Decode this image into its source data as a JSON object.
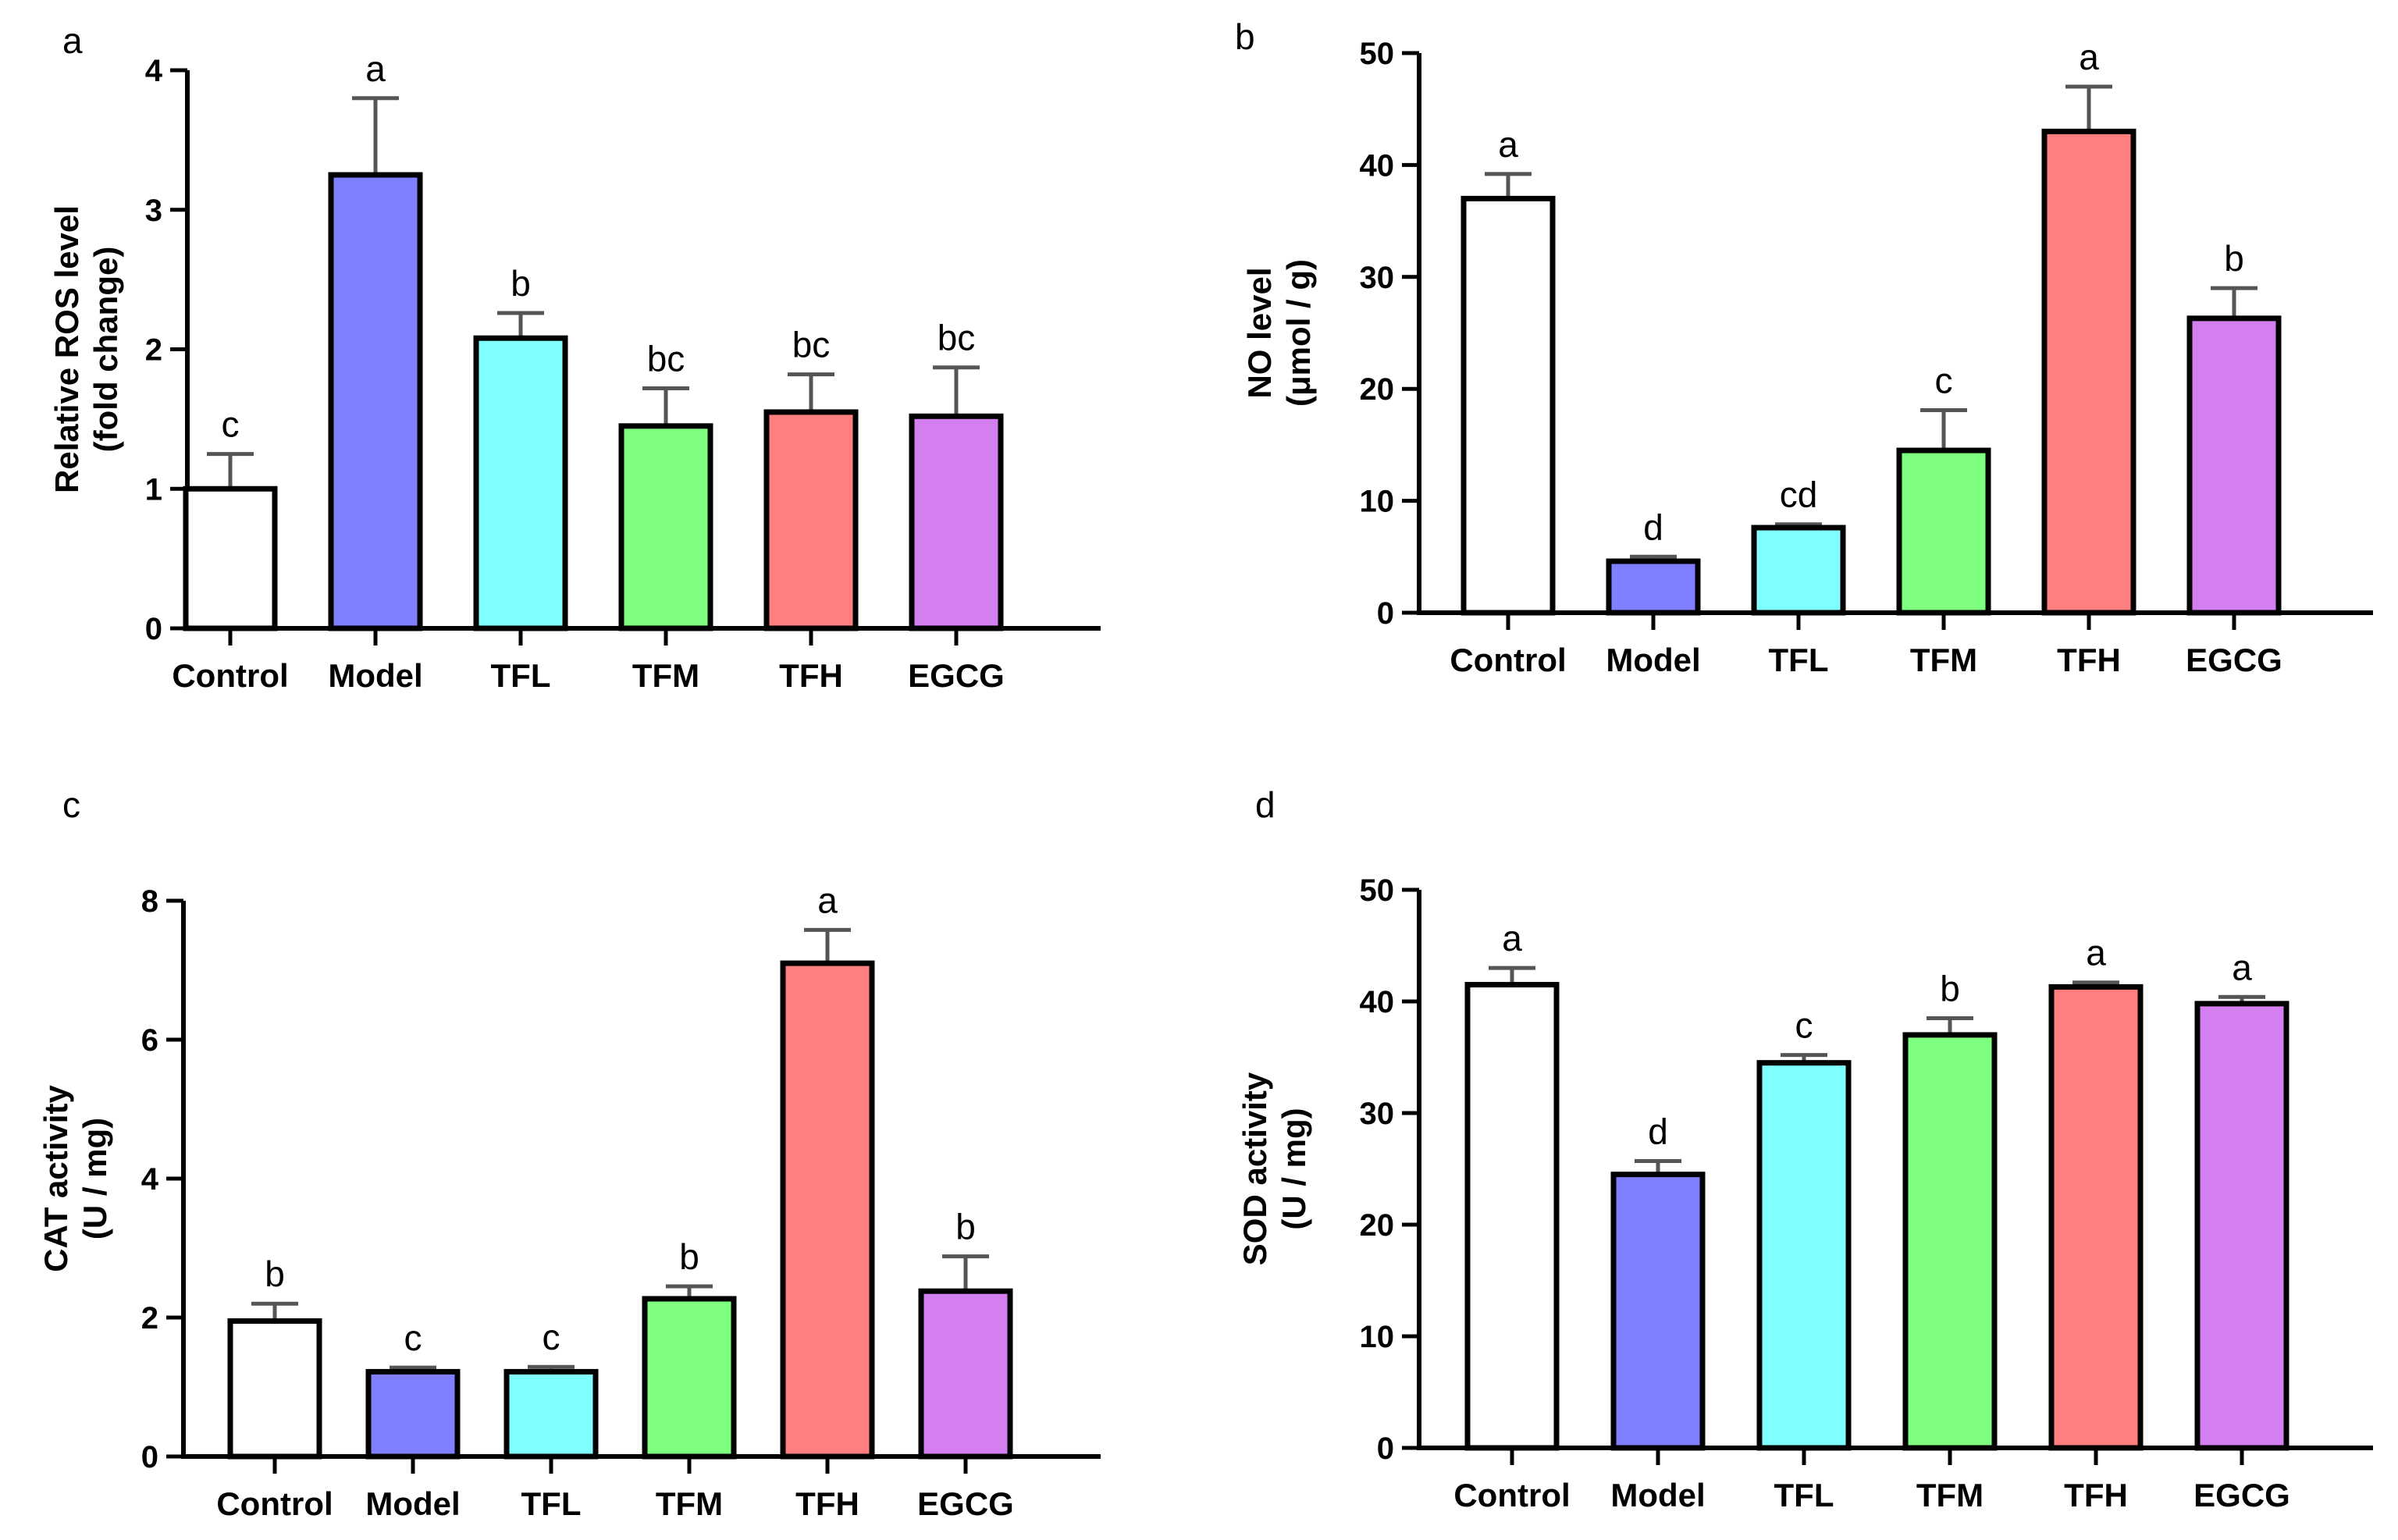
{
  "colors": {
    "Control": "#ffffff",
    "Model": "#7f7fff",
    "TFL": "#7fffff",
    "TFM": "#7fff7f",
    "TFH": "#ff7f7f",
    "EGCG": "#d47ff0",
    "axis": "#000000",
    "error_bar": "#555555"
  },
  "chart_data": [
    {
      "type": "bar",
      "panel": "a",
      "categories": [
        "Control",
        "Model",
        "TFL",
        "TFM",
        "TFH",
        "EGCG"
      ],
      "values": [
        1.0,
        3.25,
        2.08,
        1.45,
        1.55,
        1.52
      ],
      "errors": [
        0.25,
        0.55,
        0.18,
        0.27,
        0.27,
        0.35
      ],
      "significance": [
        "c",
        "a",
        "b",
        "bc",
        "bc",
        "bc"
      ],
      "ylabel": [
        "Relative ROS level",
        "(fold change)"
      ],
      "ylim": [
        0,
        4
      ],
      "yticks": [
        0,
        1,
        2,
        3,
        4
      ]
    },
    {
      "type": "bar",
      "panel": "b",
      "categories": [
        "Control",
        "Model",
        "TFL",
        "TFM",
        "TFH",
        "EGCG"
      ],
      "values": [
        37.0,
        4.6,
        7.6,
        14.5,
        43.0,
        26.3
      ],
      "errors": [
        2.2,
        0.4,
        0.3,
        3.6,
        4.0,
        2.7
      ],
      "significance": [
        "a",
        "d",
        "cd",
        "c",
        "a",
        "b"
      ],
      "ylabel": [
        "NO level",
        "(μmol / g)"
      ],
      "ylim": [
        0,
        50
      ],
      "yticks": [
        0,
        10,
        20,
        30,
        40,
        50
      ]
    },
    {
      "type": "bar",
      "panel": "c",
      "categories": [
        "Control",
        "Model",
        "TFL",
        "TFM",
        "TFH",
        "EGCG"
      ],
      "values": [
        1.95,
        1.22,
        1.22,
        2.27,
        7.1,
        2.38
      ],
      "errors": [
        0.25,
        0.06,
        0.07,
        0.18,
        0.48,
        0.5
      ],
      "significance": [
        "b",
        "c",
        "c",
        "b",
        "a",
        "b"
      ],
      "ylabel": [
        "CAT activity",
        "(U / mg)"
      ],
      "ylim": [
        0,
        8
      ],
      "yticks": [
        0,
        2,
        4,
        6,
        8
      ]
    },
    {
      "type": "bar",
      "panel": "d",
      "categories": [
        "Control",
        "Model",
        "TFL",
        "TFM",
        "TFH",
        "EGCG"
      ],
      "values": [
        41.5,
        24.5,
        34.5,
        37.0,
        41.3,
        39.8
      ],
      "errors": [
        1.5,
        1.2,
        0.7,
        1.5,
        0.4,
        0.6
      ],
      "significance": [
        "a",
        "d",
        "c",
        "b",
        "a",
        "a"
      ],
      "ylabel": [
        "SOD activity",
        "(U / mg)"
      ],
      "ylim": [
        0,
        50
      ],
      "yticks": [
        0,
        10,
        20,
        30,
        40,
        50
      ]
    }
  ]
}
